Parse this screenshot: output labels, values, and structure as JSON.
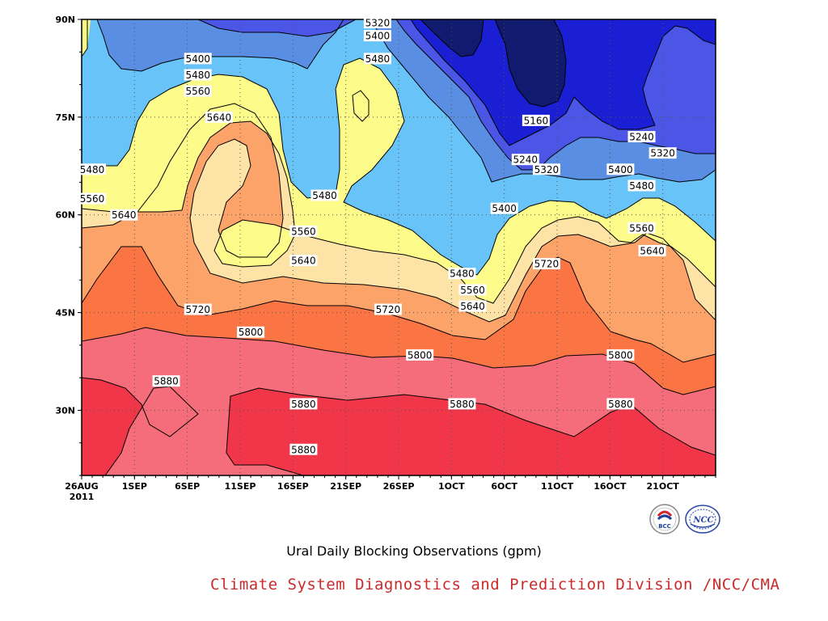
{
  "chart_data": {
    "type": "contour",
    "variable": "geopotential height (gpm)",
    "x_axis": {
      "ticks": [
        "26AUG",
        "1SEP",
        "6SEP",
        "11SEP",
        "16SEP",
        "21SEP",
        "26SEP",
        "1OCT",
        "6OCT",
        "11OCT",
        "16OCT",
        "21OCT"
      ],
      "year_label": "2011",
      "range": [
        "2011-08-26",
        "2011-10-25"
      ]
    },
    "y_axis": {
      "ticks": [
        "90N",
        "75N",
        "60N",
        "45N",
        "30N"
      ],
      "range_deg_n": [
        20,
        90
      ]
    },
    "levels": [
      5160,
      5240,
      5320,
      5400,
      5480,
      5560,
      5640,
      5720,
      5800,
      5880
    ],
    "level_colors": {
      "below_5160": "#101a6e",
      "5160_5240": "#1a1fd4",
      "5240_5320": "#4b56e6",
      "5320_5400": "#5a8ee3",
      "5400_5480": "#68c4f8",
      "5480_5560": "#fdfb8a",
      "5560_5640": "#fde3a5",
      "5640_5720": "#fba369",
      "5720_5800": "#fa7543",
      "5800_5880": "#f56d7a",
      "above_5880": "#f2364a"
    },
    "contour_labels": [
      {
        "value": "5320",
        "date": "2011-09-23",
        "lat": 89.5
      },
      {
        "value": "5400",
        "date": "2011-09-23",
        "lat": 87.5
      },
      {
        "value": "5480",
        "date": "2011-09-23",
        "lat": 84
      },
      {
        "value": "5400",
        "date": "2011-09-06",
        "lat": 84
      },
      {
        "value": "5480",
        "date": "2011-09-06",
        "lat": 81.5
      },
      {
        "value": "5560",
        "date": "2011-09-06",
        "lat": 79
      },
      {
        "value": "5640",
        "date": "2011-09-08",
        "lat": 75
      },
      {
        "value": "5480",
        "date": "2011-08-27",
        "lat": 67
      },
      {
        "value": "5560",
        "date": "2011-08-27",
        "lat": 62.5
      },
      {
        "value": "5640",
        "date": "2011-08-30",
        "lat": 60
      },
      {
        "value": "5480",
        "date": "2011-09-18",
        "lat": 63
      },
      {
        "value": "5560",
        "date": "2011-09-16",
        "lat": 57.5
      },
      {
        "value": "5640",
        "date": "2011-09-16",
        "lat": 53
      },
      {
        "value": "5720",
        "date": "2011-09-06",
        "lat": 45.5
      },
      {
        "value": "5800",
        "date": "2011-09-11",
        "lat": 42
      },
      {
        "value": "5720",
        "date": "2011-09-24",
        "lat": 45.5
      },
      {
        "value": "5800",
        "date": "2011-09-27",
        "lat": 38.5
      },
      {
        "value": "5880",
        "date": "2011-09-03",
        "lat": 34.5
      },
      {
        "value": "5880",
        "date": "2011-09-16",
        "lat": 31
      },
      {
        "value": "5880",
        "date": "2011-09-16",
        "lat": 24
      },
      {
        "value": "5880",
        "date": "2011-10-01",
        "lat": 31
      },
      {
        "value": "5480",
        "date": "2011-10-01",
        "lat": 51
      },
      {
        "value": "5560",
        "date": "2011-10-02",
        "lat": 48.5
      },
      {
        "value": "5640",
        "date": "2011-10-02",
        "lat": 46
      },
      {
        "value": "5400",
        "date": "2011-10-05",
        "lat": 61
      },
      {
        "value": "5240",
        "date": "2011-10-07",
        "lat": 68.5
      },
      {
        "value": "5160",
        "date": "2011-10-08",
        "lat": 74.5
      },
      {
        "value": "5320",
        "date": "2011-10-09",
        "lat": 67
      },
      {
        "value": "5720",
        "date": "2011-10-09",
        "lat": 52.5
      },
      {
        "value": "5400",
        "date": "2011-10-16",
        "lat": 67
      },
      {
        "value": "5240",
        "date": "2011-10-18",
        "lat": 72
      },
      {
        "value": "5320",
        "date": "2011-10-20",
        "lat": 69.5
      },
      {
        "value": "5480",
        "date": "2011-10-18",
        "lat": 64.5
      },
      {
        "value": "5560",
        "date": "2011-10-18",
        "lat": 58
      },
      {
        "value": "5640",
        "date": "2011-10-19",
        "lat": 54.5
      },
      {
        "value": "5800",
        "date": "2011-10-16",
        "lat": 38.5
      },
      {
        "value": "5880",
        "date": "2011-10-16",
        "lat": 31
      }
    ],
    "title": "Ural Daily Blocking Observations (gpm)",
    "grid": "dotted"
  },
  "caption": {
    "title": "Ural Daily Blocking Observations (gpm)",
    "credit": "Climate System Diagnostics and Prediction Division /NCC/CMA"
  },
  "logos": [
    {
      "name": "bcc-logo",
      "text": "BCC"
    },
    {
      "name": "ncc-logo",
      "text": "NCC"
    }
  ]
}
